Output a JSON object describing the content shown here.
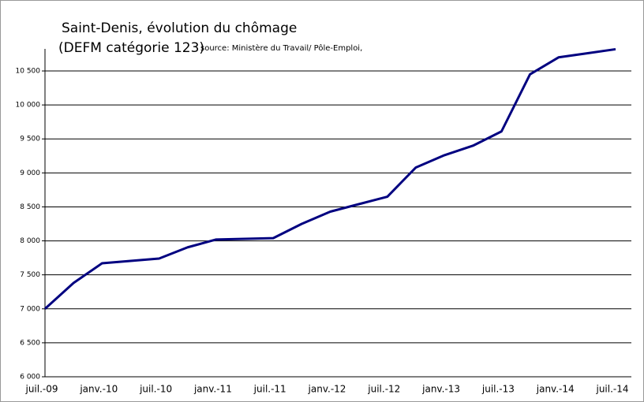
{
  "chart_data": {
    "type": "line",
    "title": "Saint-Denis, évolution du chômage",
    "subtitle": "(DEFM catégorie 123)",
    "source": "source: Ministère du Travail/ Pôle-Emploi,",
    "categories": [
      "juil.-09",
      null,
      "janv.-10",
      null,
      "juil.-10",
      null,
      "janv.-11",
      null,
      "juil.-11",
      null,
      "janv.-12",
      null,
      "juil.-12",
      null,
      "janv.-13",
      null,
      "juil.-13",
      null,
      "janv.-14",
      null,
      "juil.-14"
    ],
    "series": [
      {
        "name": "DEFM",
        "color": "#000080",
        "values": [
          7000,
          7380,
          7670,
          7705,
          7740,
          7905,
          8020,
          8030,
          8040,
          8250,
          8430,
          8540,
          8650,
          9080,
          9260,
          9400,
          9610,
          10450,
          10700,
          10760,
          10820
        ]
      }
    ],
    "ylim": [
      6000,
      10825
    ],
    "yticks": [
      {
        "value": 6000,
        "label": "6 000"
      },
      {
        "value": 6500,
        "label": "6 500"
      },
      {
        "value": 7000,
        "label": "7 000"
      },
      {
        "value": 7500,
        "label": "7 500"
      },
      {
        "value": 8000,
        "label": "8 000"
      },
      {
        "value": 8500,
        "label": "8 500"
      },
      {
        "value": 9000,
        "label": "9 000"
      },
      {
        "value": 9500,
        "label": "9 500"
      },
      {
        "value": 10000,
        "label": "10 000"
      },
      {
        "value": 10500,
        "label": "10 500"
      }
    ],
    "grid": true
  }
}
